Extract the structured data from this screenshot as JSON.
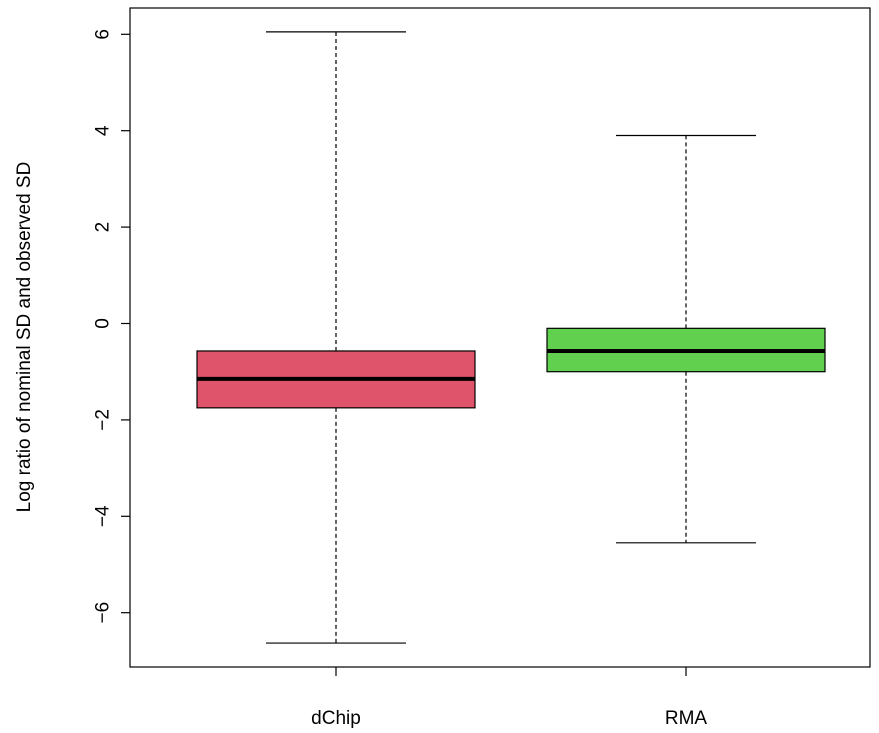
{
  "chart_data": {
    "type": "box",
    "title": "",
    "xlabel": "",
    "ylabel": "Log ratio of nominal SD and observed SD",
    "ylim": [
      -7.2,
      6.6
    ],
    "yticks": [
      -6,
      -4,
      -2,
      0,
      2,
      4,
      6
    ],
    "ytick_labels": [
      "−6",
      "−4",
      "−2",
      "0",
      "2",
      "4",
      "6"
    ],
    "grid": false,
    "legend": "none",
    "categories": [
      "dChip",
      "RMA"
    ],
    "boxes": [
      {
        "category": "dChip",
        "whisker_low": -6.63,
        "q1": -1.75,
        "median": -1.15,
        "q3": -0.57,
        "whisker_high": 6.05,
        "color": "#DF536B"
      },
      {
        "category": "RMA",
        "whisker_low": -4.55,
        "q1": -1.0,
        "median": -0.57,
        "q3": -0.1,
        "whisker_high": 3.9,
        "color": "#61D04F"
      }
    ]
  }
}
